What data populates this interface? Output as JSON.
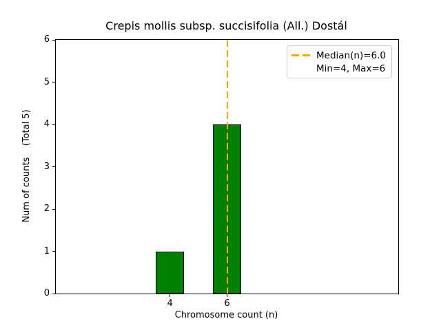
{
  "chart_data": {
    "type": "bar",
    "title": "Crepis mollis subsp. succisifolia (All.) Dostál",
    "xlabel": "Chromosome count (n)",
    "ylabel": "Num of counts    (Total 5)",
    "categories": [
      4,
      6
    ],
    "values": [
      1,
      4
    ],
    "total_counts": 5,
    "bar_width": 1.0,
    "bar_color": "#008000",
    "bar_edge_color": "#000000",
    "xlim": [
      0,
      12
    ],
    "ylim": [
      0,
      6
    ],
    "xticks": [
      4,
      6
    ],
    "yticks": [
      0,
      1,
      2,
      3,
      4,
      5,
      6
    ],
    "grid": false,
    "median_line": {
      "x": 6.0,
      "color": "#FFA500",
      "style": "dashed"
    },
    "legend": {
      "position": "upper right",
      "items": [
        {
          "label": "Median(n)=6.0",
          "marker": "orange-dashed-line"
        },
        {
          "label": "Min=4, Max=6",
          "marker": "none"
        }
      ]
    }
  }
}
